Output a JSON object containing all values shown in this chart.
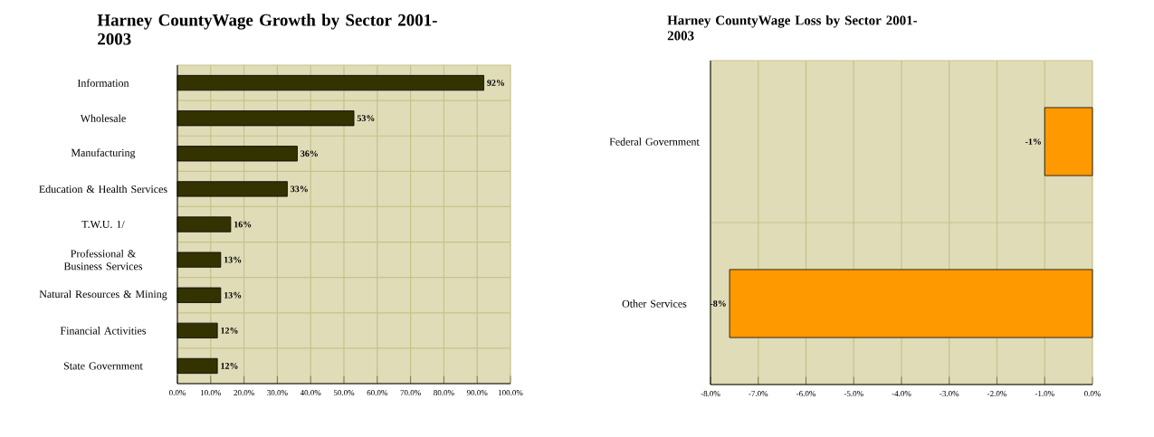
{
  "chart_data": [
    {
      "type": "bar",
      "orientation": "horizontal",
      "title": "Harney CountyWage Growth by Sector 2001-2003",
      "categories": [
        "Information",
        "Wholesale",
        "Manufacturing",
        "Education & Health Services",
        "T.W.U. 1/",
        "Professional & Business Services",
        "Natural Resources & Mining",
        "Financial Activities",
        "State Government"
      ],
      "values": [
        92,
        53,
        36,
        33,
        16,
        13,
        13,
        12,
        12
      ],
      "value_labels": [
        "92%",
        "53%",
        "36%",
        "33%",
        "16%",
        "13%",
        "13%",
        "12%",
        "12%"
      ],
      "color": "#333300",
      "xlim": [
        0,
        100
      ],
      "xticks": [
        {
          "value": 0,
          "label": "0.0%"
        },
        {
          "value": 10,
          "label": "10.0%"
        },
        {
          "value": 20,
          "label": "20.0%"
        },
        {
          "value": 30,
          "label": "30.0%"
        },
        {
          "value": 40,
          "label": "40.0%"
        },
        {
          "value": 50,
          "label": "50.0%"
        },
        {
          "value": 60,
          "label": "60.0%"
        },
        {
          "value": 70,
          "label": "70.0%"
        },
        {
          "value": 80,
          "label": "80.0%"
        },
        {
          "value": 90,
          "label": "90.0%"
        },
        {
          "value": 100,
          "label": "100.0%"
        }
      ],
      "grid": true
    },
    {
      "type": "bar",
      "orientation": "horizontal",
      "title": "Harney CountyWage Loss by Sector 2001-2003",
      "categories": [
        "Federal Government",
        "Other Services"
      ],
      "values": [
        -1.0,
        -7.6
      ],
      "value_labels": [
        "-1%",
        "-8%"
      ],
      "color": "#ff9900",
      "xlim": [
        -8,
        0
      ],
      "xticks": [
        {
          "value": -8,
          "label": "-8.0%"
        },
        {
          "value": -7,
          "label": "-7.0%"
        },
        {
          "value": -6,
          "label": "-6.0%"
        },
        {
          "value": -5,
          "label": "-5.0%"
        },
        {
          "value": -4,
          "label": "-4.0%"
        },
        {
          "value": -3,
          "label": "-3.0%"
        },
        {
          "value": -2,
          "label": "-2.0%"
        },
        {
          "value": -1,
          "label": "-1.0%"
        },
        {
          "value": 0,
          "label": "0.0%"
        }
      ],
      "grid": true
    }
  ]
}
